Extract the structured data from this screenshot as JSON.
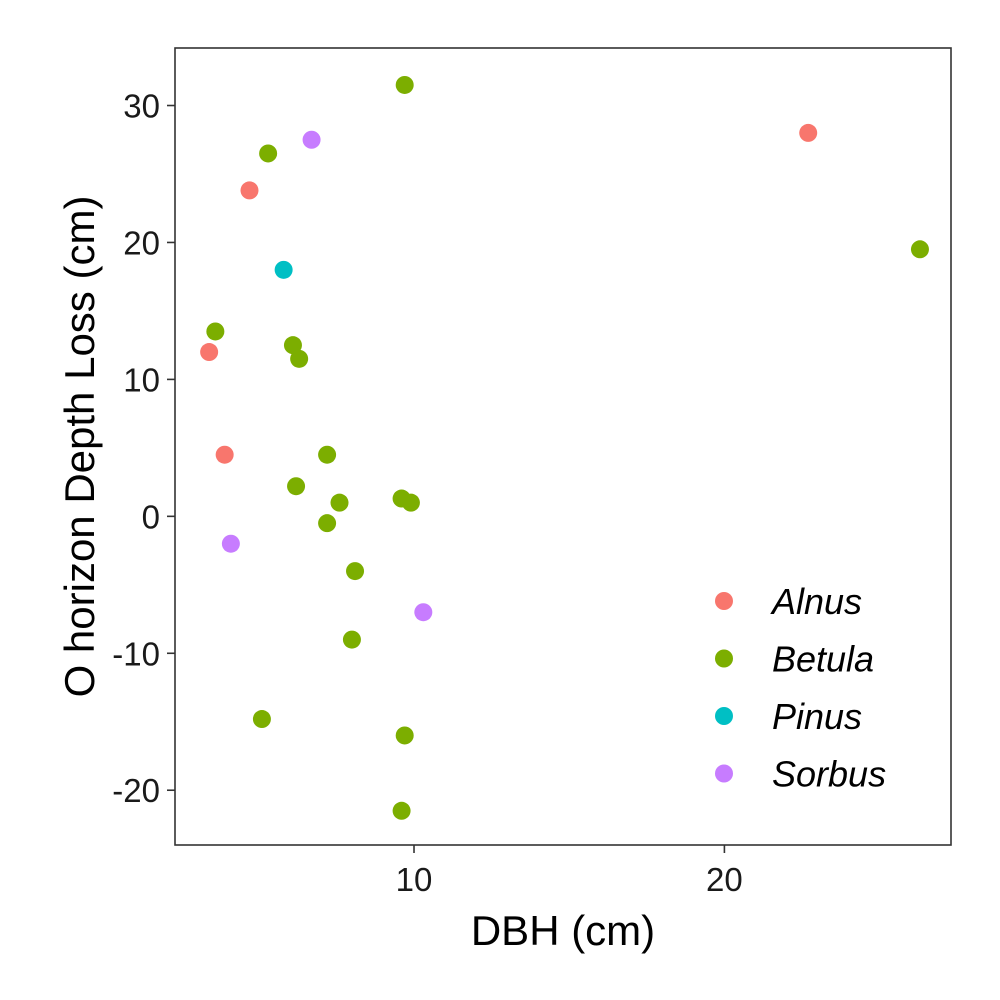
{
  "chart_data": {
    "type": "scatter",
    "title": "",
    "xlabel": "DBH (cm)",
    "ylabel": "O horizon Depth Loss (cm)",
    "xlim": [
      2.3,
      27.3
    ],
    "ylim": [
      -24,
      34.2
    ],
    "xticks": [
      10,
      20
    ],
    "yticks": [
      -20,
      -10,
      0,
      10,
      20,
      30
    ],
    "xtick_labels": [
      "10",
      "20"
    ],
    "ytick_labels": [
      "-20",
      "-10",
      "0",
      "10",
      "20",
      "30"
    ],
    "grid": false,
    "legend_position": "bottom-right",
    "series": [
      {
        "name": "Alnus",
        "color": "#F8766D",
        "points": [
          {
            "x": 3.4,
            "y": 12.0
          },
          {
            "x": 3.9,
            "y": 4.5
          },
          {
            "x": 4.7,
            "y": 23.8
          },
          {
            "x": 22.7,
            "y": 28.0
          }
        ]
      },
      {
        "name": "Betula",
        "color": "#7CAE00",
        "points": [
          {
            "x": 3.6,
            "y": 13.5
          },
          {
            "x": 5.3,
            "y": 26.5
          },
          {
            "x": 5.1,
            "y": -14.8
          },
          {
            "x": 6.1,
            "y": 12.5
          },
          {
            "x": 6.3,
            "y": 11.5
          },
          {
            "x": 6.2,
            "y": 2.2
          },
          {
            "x": 7.2,
            "y": 4.5
          },
          {
            "x": 7.2,
            "y": -0.5
          },
          {
            "x": 7.6,
            "y": 1.0
          },
          {
            "x": 8.1,
            "y": -4.0
          },
          {
            "x": 8.0,
            "y": -9.0
          },
          {
            "x": 9.7,
            "y": 31.5
          },
          {
            "x": 9.6,
            "y": 1.3
          },
          {
            "x": 9.9,
            "y": 1.0
          },
          {
            "x": 9.7,
            "y": -16.0
          },
          {
            "x": 9.6,
            "y": -21.5
          },
          {
            "x": 26.3,
            "y": 19.5
          }
        ]
      },
      {
        "name": "Pinus",
        "color": "#00BFC4",
        "points": [
          {
            "x": 5.8,
            "y": 18.0
          }
        ]
      },
      {
        "name": "Sorbus",
        "color": "#C77CFF",
        "points": [
          {
            "x": 6.7,
            "y": 27.5
          },
          {
            "x": 4.1,
            "y": -2.0
          },
          {
            "x": 10.3,
            "y": -7.0
          }
        ]
      }
    ]
  }
}
